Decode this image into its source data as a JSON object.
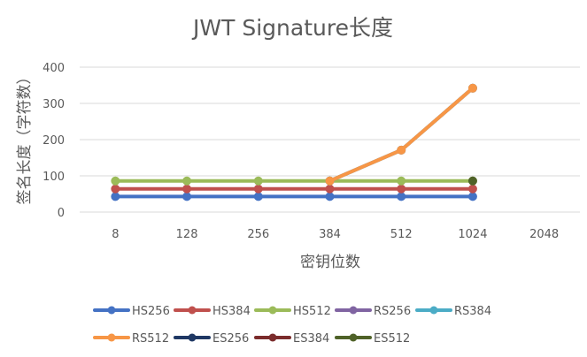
{
  "chart_data": {
    "type": "line",
    "title": "JWT Signature长度",
    "xlabel": "密钥位数",
    "ylabel": "签名长度（字符数）",
    "categories": [
      "8",
      "128",
      "256",
      "384",
      "512",
      "1024",
      "2048"
    ],
    "ylim": [
      0,
      400
    ],
    "yticks": [
      "0",
      "100",
      "200",
      "300",
      "400"
    ],
    "grid": true,
    "legend_position": "bottom",
    "series": [
      {
        "name": "HS256",
        "color": "#4472C4",
        "values": [
          43,
          43,
          43,
          43,
          43,
          43,
          null
        ]
      },
      {
        "name": "HS384",
        "color": "#C0504D",
        "values": [
          64,
          64,
          64,
          64,
          64,
          64,
          null
        ]
      },
      {
        "name": "HS512",
        "color": "#9BBB59",
        "values": [
          86,
          86,
          86,
          86,
          86,
          86,
          null
        ]
      },
      {
        "name": "RS256",
        "color": "#8064A2",
        "values": [
          null,
          null,
          null,
          86,
          171,
          342,
          null
        ]
      },
      {
        "name": "RS384",
        "color": "#4BACC6",
        "values": [
          null,
          null,
          null,
          86,
          171,
          342,
          null
        ]
      },
      {
        "name": "RS512",
        "color": "#F79646",
        "values": [
          null,
          null,
          null,
          86,
          171,
          342,
          null
        ]
      },
      {
        "name": "ES256",
        "color": "#1F3864",
        "values": [
          null,
          null,
          null,
          null,
          null,
          null,
          null
        ]
      },
      {
        "name": "ES384",
        "color": "#7B2C2C",
        "values": [
          null,
          null,
          null,
          null,
          null,
          null,
          null
        ]
      },
      {
        "name": "ES512",
        "color": "#4F6228",
        "values": [
          null,
          null,
          null,
          null,
          null,
          86,
          null
        ]
      }
    ]
  }
}
